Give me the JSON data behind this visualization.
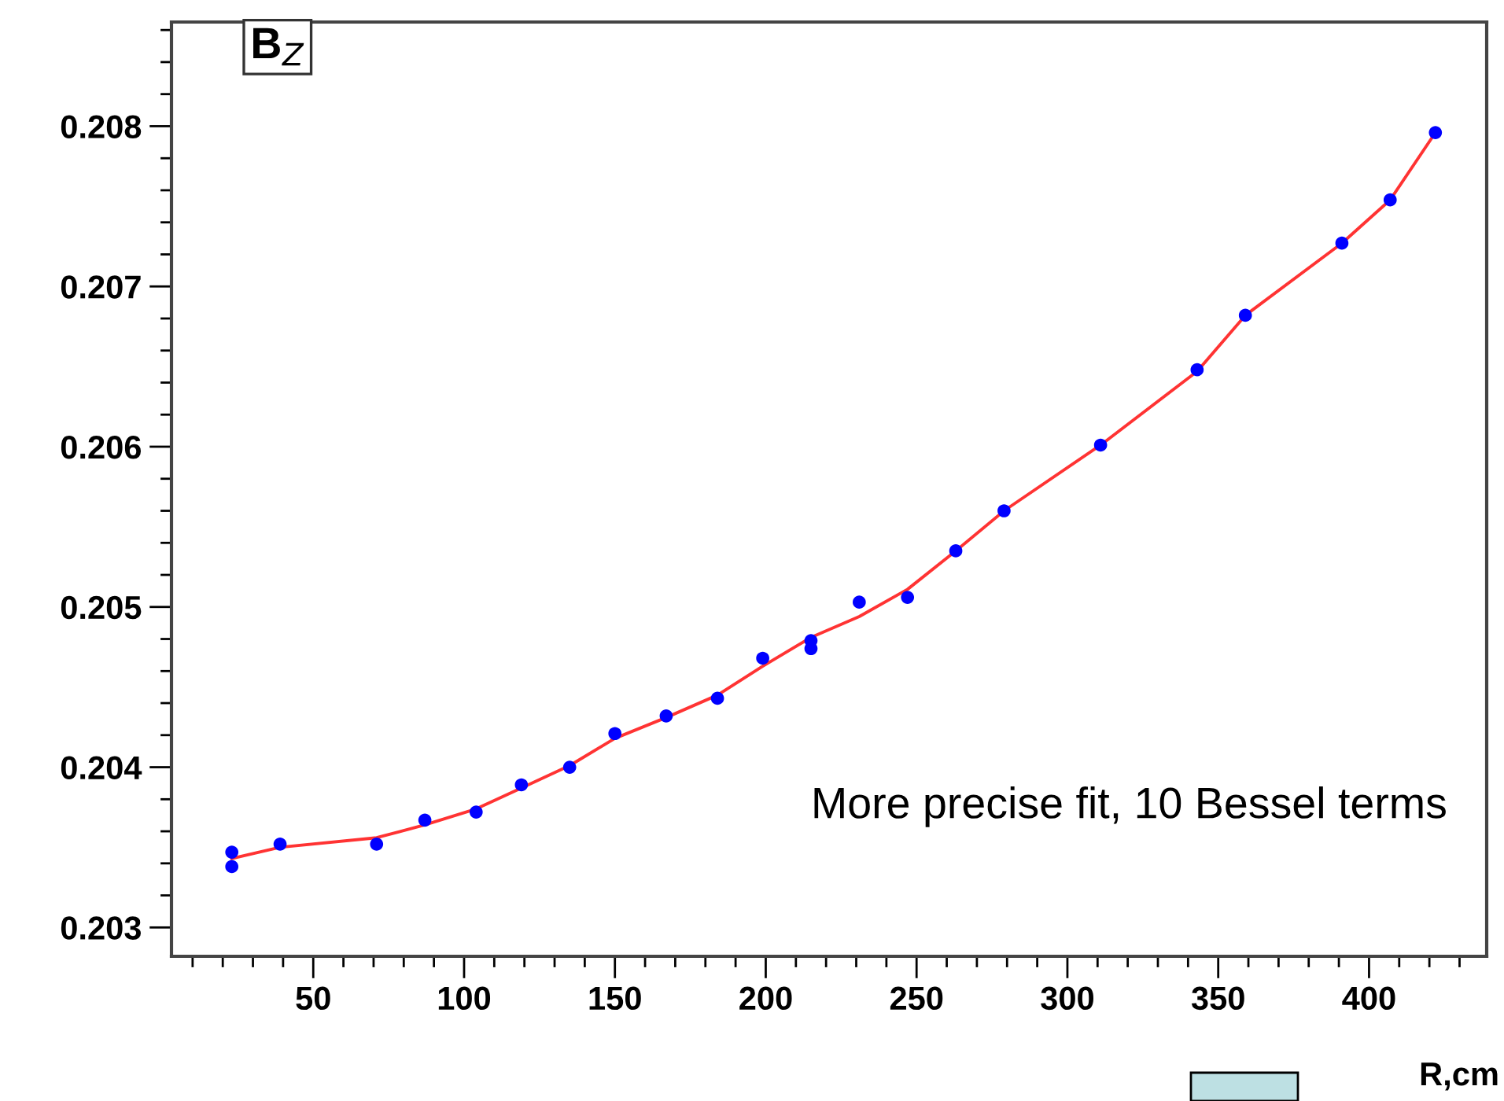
{
  "chart_data": {
    "type": "scatter",
    "title": "B$_{Z}$",
    "xlabel": "R,cm",
    "annotations": [
      "More precise fit, 10 Bessel terms"
    ],
    "xlim": [
      3,
      439
    ],
    "xticks": [
      50,
      100,
      150,
      200,
      250,
      300,
      350,
      400
    ],
    "ylim": [
      0.20282,
      0.20865
    ],
    "yticks": [
      0.203,
      0.204,
      0.205,
      0.206,
      0.207,
      0.208
    ],
    "grid": false,
    "legend": false,
    "marker": "circle",
    "series": [
      {
        "color": "#0000ff",
        "x": [
          23,
          23,
          39,
          71,
          87,
          104,
          119,
          135,
          150,
          167,
          184,
          199,
          215,
          215,
          231,
          247,
          263,
          279,
          311,
          343,
          359,
          391,
          407,
          422
        ],
        "values": [
          0.20347,
          0.20338,
          0.20352,
          0.20352,
          0.20367,
          0.20372,
          0.20389,
          0.204,
          0.20421,
          0.20432,
          0.20443,
          0.20468,
          0.20479,
          0.20474,
          0.20503,
          0.20506,
          0.20535,
          0.2056,
          0.20601,
          0.20648,
          0.20682,
          0.20727,
          0.20754,
          0.20796
        ]
      },
      {
        "type": "line",
        "color": "#ff3333",
        "line_style": "solid",
        "marker": "none",
        "x": [
          23,
          39,
          71,
          87,
          104,
          119,
          135,
          150,
          167,
          184,
          199,
          215,
          231,
          247,
          263,
          279,
          311,
          343,
          359,
          391,
          407,
          422
        ],
        "values": [
          0.20343,
          0.2035,
          0.20356,
          0.20364,
          0.20374,
          0.20387,
          0.20401,
          0.20418,
          0.20431,
          0.20445,
          0.20463,
          0.20481,
          0.20494,
          0.20511,
          0.20535,
          0.2056,
          0.20601,
          0.20647,
          0.20682,
          0.20727,
          0.20754,
          0.20796
        ]
      }
    ]
  }
}
